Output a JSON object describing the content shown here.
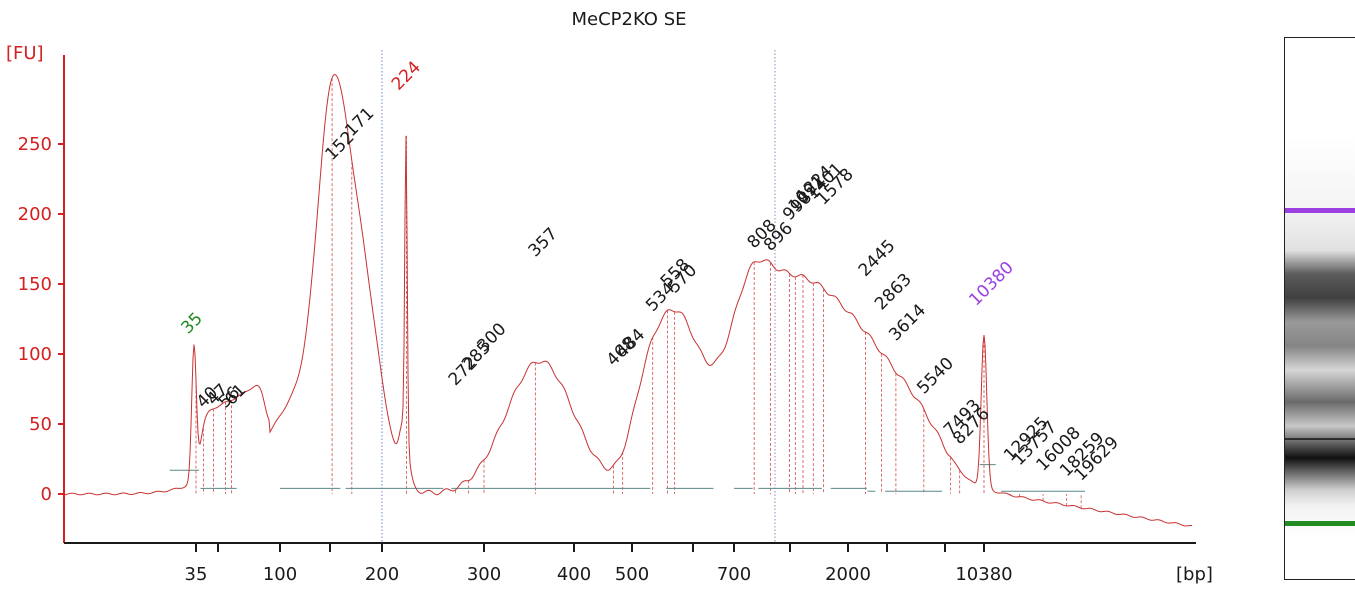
{
  "chart_data": {
    "type": "line",
    "title": "MeCP2KO SE",
    "ylabel": "[FU]",
    "xlabel": "[bp]",
    "ylim": [
      -35,
      320
    ],
    "yticks": [
      0,
      50,
      100,
      150,
      200,
      250
    ],
    "xticks": [
      {
        "label": "35",
        "bp": 35
      },
      {
        "label": "",
        "bp": 50
      },
      {
        "label": "100",
        "bp": 100
      },
      {
        "label": "",
        "bp": 150
      },
      {
        "label": "200",
        "bp": 200
      },
      {
        "label": "300",
        "bp": 300
      },
      {
        "label": "400",
        "bp": 400
      },
      {
        "label": "500",
        "bp": 500
      },
      {
        "label": "",
        "bp": 600
      },
      {
        "label": "700",
        "bp": 700
      },
      {
        "label": "",
        "bp": 1000
      },
      {
        "label": "2000",
        "bp": 2000
      },
      {
        "label": "",
        "bp": 3000
      },
      {
        "label": "",
        "bp": 7000
      },
      {
        "label": "10380",
        "bp": 10380
      }
    ],
    "markers": [
      {
        "label": "35",
        "bp": 35,
        "fu": 111,
        "role": "lower-marker",
        "color": "#228b22"
      },
      {
        "label": "224",
        "bp": 224,
        "fu": 285,
        "role": "spike",
        "color": "#d42020"
      },
      {
        "label": "10380",
        "bp": 10380,
        "fu": 131,
        "role": "upper-marker",
        "color": "#9b3fe0"
      }
    ],
    "peak_labels": [
      {
        "label": "40",
        "bp": 40,
        "fu": 58
      },
      {
        "label": "47",
        "bp": 47,
        "fu": 60
      },
      {
        "label": "56",
        "bp": 56,
        "fu": 58
      },
      {
        "label": "61",
        "bp": 61,
        "fu": 60
      },
      {
        "label": "152",
        "bp": 152,
        "fu": 235
      },
      {
        "label": "171",
        "bp": 171,
        "fu": 252
      },
      {
        "label": "272",
        "bp": 272,
        "fu": 74
      },
      {
        "label": "285",
        "bp": 285,
        "fu": 85
      },
      {
        "label": "300",
        "bp": 300,
        "fu": 98
      },
      {
        "label": "357",
        "bp": 357,
        "fu": 166
      },
      {
        "label": "468",
        "bp": 468,
        "fu": 88
      },
      {
        "label": "484",
        "bp": 484,
        "fu": 94
      },
      {
        "label": "534",
        "bp": 534,
        "fu": 127
      },
      {
        "label": "558",
        "bp": 558,
        "fu": 144
      },
      {
        "label": "570",
        "bp": 570,
        "fu": 140
      },
      {
        "label": "808",
        "bp": 808,
        "fu": 172
      },
      {
        "label": "896",
        "bp": 896,
        "fu": 170
      },
      {
        "label": "998",
        "bp": 998,
        "fu": 192
      },
      {
        "label": "1091",
        "bp": 1091,
        "fu": 198
      },
      {
        "label": "1224",
        "bp": 1224,
        "fu": 205
      },
      {
        "label": "1401",
        "bp": 1401,
        "fu": 207
      },
      {
        "label": "1578",
        "bp": 1578,
        "fu": 203
      },
      {
        "label": "2445",
        "bp": 2445,
        "fu": 152
      },
      {
        "label": "2863",
        "bp": 2863,
        "fu": 128
      },
      {
        "label": "3614",
        "bp": 3614,
        "fu": 106
      },
      {
        "label": "5540",
        "bp": 5540,
        "fu": 68
      },
      {
        "label": "7493",
        "bp": 7493,
        "fu": 38
      },
      {
        "label": "8276",
        "bp": 8276,
        "fu": 32
      },
      {
        "label": "12925",
        "bp": 12925,
        "fu": 20
      },
      {
        "label": "13757",
        "bp": 13757,
        "fu": 17
      },
      {
        "label": "16008",
        "bp": 16008,
        "fu": 13
      },
      {
        "label": "18259",
        "bp": 18259,
        "fu": 9
      },
      {
        "label": "19629",
        "bp": 19629,
        "fu": 6
      }
    ],
    "baselines": [
      {
        "from_bp": 32,
        "to_bp": 37,
        "fu": 17
      },
      {
        "from_bp": 38,
        "to_bp": 65,
        "fu": 4
      },
      {
        "from_bp": 100,
        "to_bp": 160,
        "fu": 4
      },
      {
        "from_bp": 165,
        "to_bp": 260,
        "fu": 4
      },
      {
        "from_bp": 268,
        "to_bp": 530,
        "fu": 4
      },
      {
        "from_bp": 556,
        "to_bp": 650,
        "fu": 4
      },
      {
        "from_bp": 700,
        "to_bp": 800,
        "fu": 4
      },
      {
        "from_bp": 830,
        "to_bp": 1550,
        "fu": 4
      },
      {
        "from_bp": 1700,
        "to_bp": 2480,
        "fu": 4
      },
      {
        "from_bp": 2500,
        "to_bp": 2700,
        "fu": 2
      },
      {
        "from_bp": 2950,
        "to_bp": 6800,
        "fu": 2
      },
      {
        "from_bp": 10000,
        "to_bp": 11500,
        "fu": 21
      },
      {
        "from_bp": 12000,
        "to_bp": 20000,
        "fu": 2
      }
    ],
    "grid": false
  },
  "gel": {
    "upper_marker_color": "#9b3fe0",
    "lower_marker_color": "#228b22"
  },
  "colors": {
    "trace": "#c83232",
    "axis": "#d42020",
    "baseline": "#5a8a8a",
    "text": "#1a1a1a"
  }
}
